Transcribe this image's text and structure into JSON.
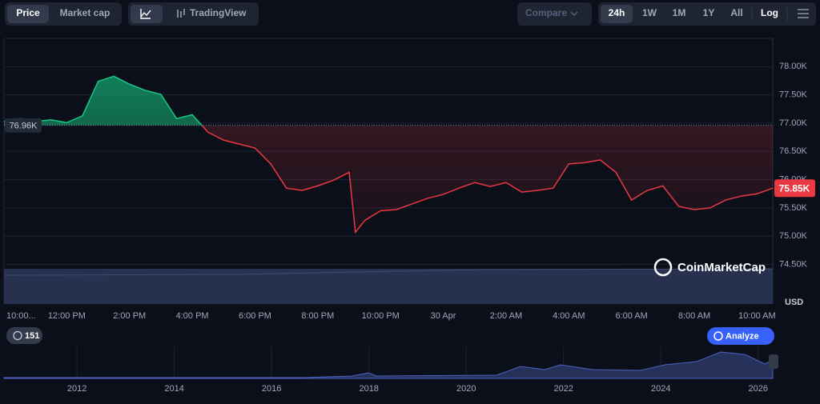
{
  "toolbar": {
    "tabs": [
      "Price",
      "Market cap"
    ],
    "tradingview": "TradingView",
    "compare": "Compare",
    "ranges": [
      "24h",
      "1W",
      "1M",
      "1Y",
      "All"
    ],
    "log": "Log"
  },
  "chart_data": {
    "type": "line",
    "x": [
      0,
      0.5,
      1,
      1.5,
      2,
      2.5,
      3,
      3.5,
      4,
      4.5,
      5,
      5.5,
      6,
      6.5,
      7,
      7.5,
      8,
      8.5,
      9,
      9.5,
      10,
      10.5,
      11,
      11.2,
      11.5,
      12,
      12.5,
      13,
      13.5,
      14,
      14.5,
      15,
      15.5,
      16,
      16.5,
      17,
      17.5,
      18,
      18.5,
      19,
      19.5,
      20,
      20.5,
      21,
      21.5,
      22,
      22.5,
      23,
      23.5,
      24,
      24.5
    ],
    "series": [
      {
        "color": "#ea3943",
        "values": [
          77.03,
          77.08,
          77.03,
          77.06,
          77.01,
          77.13,
          77.74,
          77.83,
          77.69,
          77.58,
          77.51,
          77.08,
          77.15,
          76.84,
          76.7,
          76.63,
          76.56,
          76.28,
          75.85,
          75.81,
          75.89,
          75.99,
          76.13,
          75.07,
          75.28,
          75.45,
          75.47,
          75.57,
          75.67,
          75.74,
          75.85,
          75.95,
          75.88,
          75.95,
          75.78,
          75.81,
          75.85,
          76.28,
          76.3,
          76.35,
          76.13,
          75.64,
          75.81,
          75.89,
          75.53,
          75.47,
          75.5,
          75.64,
          75.71,
          75.75,
          75.85
        ]
      }
    ],
    "up_color": "#16c784",
    "baseline": {
      "value": 76.96,
      "label": "76.96K"
    },
    "last": {
      "value": 75.85,
      "label": "75.85K"
    },
    "xlim": [
      0,
      24.5
    ],
    "xticks": [
      {
        "value": 0,
        "label": "10:00..."
      },
      {
        "value": 2,
        "label": "12:00 PM"
      },
      {
        "value": 4,
        "label": "2:00 PM"
      },
      {
        "value": 6,
        "label": "4:00 PM"
      },
      {
        "value": 8,
        "label": "6:00 PM"
      },
      {
        "value": 10,
        "label": "8:00 PM"
      },
      {
        "value": 12,
        "label": "10:00 PM"
      },
      {
        "value": 14,
        "label": "30 Apr"
      },
      {
        "value": 16,
        "label": "2:00 AM"
      },
      {
        "value": 18,
        "label": "4:00 AM"
      },
      {
        "value": 20,
        "label": "6:00 AM"
      },
      {
        "value": 22,
        "label": "8:00 AM"
      },
      {
        "value": 24,
        "label": "10:00 AM"
      }
    ],
    "ylim": [
      73.8,
      78.5
    ],
    "yticks": [
      {
        "value": 74.5,
        "label": "74.50K"
      },
      {
        "value": 75,
        "label": "75.00K"
      },
      {
        "value": 75.5,
        "label": "75.50K"
      },
      {
        "value": 76,
        "label": "76.00K"
      },
      {
        "value": 76.5,
        "label": "76.50K"
      },
      {
        "value": 77,
        "label": "77.00K"
      },
      {
        "value": 77.5,
        "label": "77.50K"
      },
      {
        "value": 78,
        "label": "78.00K"
      }
    ],
    "grid": true,
    "currency": "USD",
    "watermark": "CoinMarketCap"
  },
  "overview": {
    "xlim": [
      2010.5,
      2026.3
    ],
    "xticks": [
      2012,
      2014,
      2016,
      2018,
      2020,
      2022,
      2024,
      2026
    ]
  },
  "badge": "151",
  "analyze": "Analyze"
}
